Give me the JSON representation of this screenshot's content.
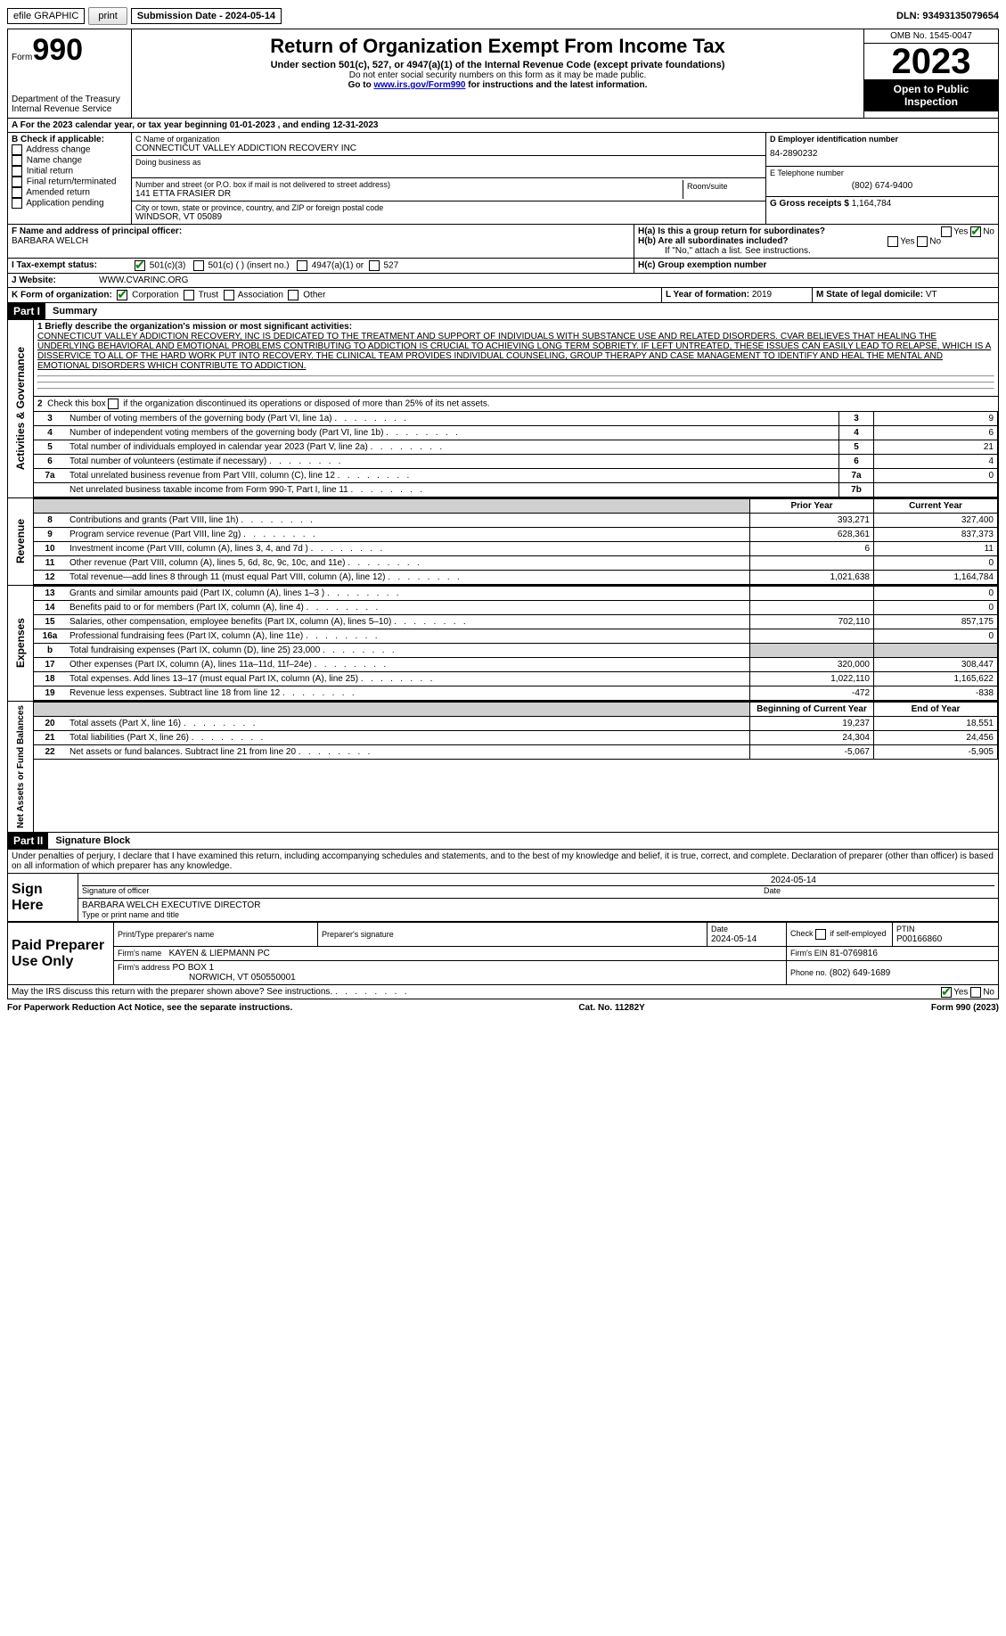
{
  "topbar": {
    "efile": "efile GRAPHIC",
    "print": "print",
    "submission": "Submission Date - 2024-05-14",
    "dln": "DLN: 93493135079654"
  },
  "header": {
    "form_label": "Form",
    "form_no": "990",
    "dept": "Department of the Treasury\nInternal Revenue Service",
    "title": "Return of Organization Exempt From Income Tax",
    "sub": "Under section 501(c), 527, or 4947(a)(1) of the Internal Revenue Code (except private foundations)",
    "warn": "Do not enter social security numbers on this form as it may be made public.",
    "goto_pre": "Go to ",
    "goto_link": "www.irs.gov/Form990",
    "goto_post": " for instructions and the latest information.",
    "omb": "OMB No. 1545-0047",
    "year": "2023",
    "inspection": "Open to Public Inspection"
  },
  "line_a": "A For the 2023 calendar year, or tax year beginning 01-01-2023   , and ending 12-31-2023",
  "block_b": {
    "label": "B Check if applicable:",
    "opts": [
      "Address change",
      "Name change",
      "Initial return",
      "Final return/terminated",
      "Amended return",
      "Application pending"
    ]
  },
  "block_c": {
    "name_label": "C Name of organization",
    "name": "CONNECTICUT VALLEY ADDICTION RECOVERY INC",
    "dba_label": "Doing business as",
    "street_label": "Number and street (or P.O. box if mail is not delivered to street address)",
    "room_label": "Room/suite",
    "street": "141 ETTA FRASIER DR",
    "city_label": "City or town, state or province, country, and ZIP or foreign postal code",
    "city": "WINDSOR, VT  05089"
  },
  "block_d": {
    "label": "D Employer identification number",
    "value": "84-2890232"
  },
  "block_e": {
    "label": "E Telephone number",
    "value": "(802) 674-9400"
  },
  "block_g": {
    "label": "G Gross receipts $",
    "value": "1,164,784"
  },
  "block_f": {
    "label": "F Name and address of principal officer:",
    "name": "BARBARA WELCH"
  },
  "block_h": {
    "ha": "H(a)  Is this a group return for subordinates?",
    "hb": "H(b)  Are all subordinates included?",
    "hb_note": "If \"No,\" attach a list. See instructions.",
    "hc": "H(c)  Group exemption number",
    "yes": "Yes",
    "no": "No"
  },
  "block_i": {
    "label": "I   Tax-exempt status:",
    "o1": "501(c)(3)",
    "o2": "501(c) (  ) (insert no.)",
    "o3": "4947(a)(1) or",
    "o4": "527"
  },
  "block_j": {
    "label": "J   Website:",
    "value": "WWW.CVARINC.ORG"
  },
  "block_k": {
    "label": "K Form of organization:",
    "o1": "Corporation",
    "o2": "Trust",
    "o3": "Association",
    "o4": "Other"
  },
  "block_l": {
    "label": "L Year of formation:",
    "value": "2019"
  },
  "block_m": {
    "label": "M State of legal domicile:",
    "value": "VT"
  },
  "part1": {
    "label": "Part I",
    "title": "Summary"
  },
  "mission_label": "1  Briefly describe the organization's mission or most significant activities:",
  "mission": "CONNECTICUT VALLEY ADDICTION RECOVERY, INC IS DEDICATED TO THE TREATMENT AND SUPPORT OF INDIVIDUALS WITH SUBSTANCE USE AND RELATED DISORDERS. CVAR BELIEVES THAT HEALING THE UNDERLYING BEHAVIORAL AND EMOTIONAL PROBLEMS CONTRIBUTING TO ADDICTION IS CRUCIAL TO ACHIEVING LONG TERM SOBRIETY. IF LEFT UNTREATED, THESE ISSUES CAN EASILY LEAD TO RELAPSE, WHICH IS A DISSERVICE TO ALL OF THE HARD WORK PUT INTO RECOVERY. THE CLINICAL TEAM PROVIDES INDIVIDUAL COUNSELING, GROUP THERAPY AND CASE MANAGEMENT TO IDENTIFY AND HEAL THE MENTAL AND EMOTIONAL DISORDERS WHICH CONTRIBUTE TO ADDICTION.",
  "line2": "2   Check this box       if the organization discontinued its operations or disposed of more than 25% of its net assets.",
  "gov_rows": [
    {
      "n": "3",
      "t": "Number of voting members of the governing body (Part VI, line 1a)",
      "b": "3",
      "v": "9"
    },
    {
      "n": "4",
      "t": "Number of independent voting members of the governing body (Part VI, line 1b)",
      "b": "4",
      "v": "6"
    },
    {
      "n": "5",
      "t": "Total number of individuals employed in calendar year 2023 (Part V, line 2a)",
      "b": "5",
      "v": "21"
    },
    {
      "n": "6",
      "t": "Total number of volunteers (estimate if necessary)",
      "b": "6",
      "v": "4"
    },
    {
      "n": "7a",
      "t": "Total unrelated business revenue from Part VIII, column (C), line 12",
      "b": "7a",
      "v": "0"
    },
    {
      "n": "",
      "t": "Net unrelated business taxable income from Form 990-T, Part I, line 11",
      "b": "7b",
      "v": ""
    }
  ],
  "py": "Prior Year",
  "cy": "Current Year",
  "rev_rows": [
    {
      "n": "8",
      "t": "Contributions and grants (Part VIII, line 1h)",
      "p": "393,271",
      "c": "327,400"
    },
    {
      "n": "9",
      "t": "Program service revenue (Part VIII, line 2g)",
      "p": "628,361",
      "c": "837,373"
    },
    {
      "n": "10",
      "t": "Investment income (Part VIII, column (A), lines 3, 4, and 7d )",
      "p": "6",
      "c": "11"
    },
    {
      "n": "11",
      "t": "Other revenue (Part VIII, column (A), lines 5, 6d, 8c, 9c, 10c, and 11e)",
      "p": "",
      "c": "0"
    },
    {
      "n": "12",
      "t": "Total revenue—add lines 8 through 11 (must equal Part VIII, column (A), line 12)",
      "p": "1,021,638",
      "c": "1,164,784"
    }
  ],
  "exp_rows": [
    {
      "n": "13",
      "t": "Grants and similar amounts paid (Part IX, column (A), lines 1–3 )",
      "p": "",
      "c": "0"
    },
    {
      "n": "14",
      "t": "Benefits paid to or for members (Part IX, column (A), line 4)",
      "p": "",
      "c": "0"
    },
    {
      "n": "15",
      "t": "Salaries, other compensation, employee benefits (Part IX, column (A), lines 5–10)",
      "p": "702,110",
      "c": "857,175"
    },
    {
      "n": "16a",
      "t": "Professional fundraising fees (Part IX, column (A), line 11e)",
      "p": "",
      "c": "0"
    },
    {
      "n": "b",
      "t": "Total fundraising expenses (Part IX, column (D), line 25) 23,000",
      "p": "grey",
      "c": "grey"
    },
    {
      "n": "17",
      "t": "Other expenses (Part IX, column (A), lines 11a–11d, 11f–24e)",
      "p": "320,000",
      "c": "308,447"
    },
    {
      "n": "18",
      "t": "Total expenses. Add lines 13–17 (must equal Part IX, column (A), line 25)",
      "p": "1,022,110",
      "c": "1,165,622"
    },
    {
      "n": "19",
      "t": "Revenue less expenses. Subtract line 18 from line 12",
      "p": "-472",
      "c": "-838"
    }
  ],
  "bcy": "Beginning of Current Year",
  "ecy": "End of Year",
  "na_rows": [
    {
      "n": "20",
      "t": "Total assets (Part X, line 16)",
      "p": "19,237",
      "c": "18,551"
    },
    {
      "n": "21",
      "t": "Total liabilities (Part X, line 26)",
      "p": "24,304",
      "c": "24,456"
    },
    {
      "n": "22",
      "t": "Net assets or fund balances. Subtract line 21 from line 20",
      "p": "-5,067",
      "c": "-5,905"
    }
  ],
  "sections": {
    "gov": "Activities & Governance",
    "rev": "Revenue",
    "exp": "Expenses",
    "na": "Net Assets or Fund Balances"
  },
  "part2": {
    "label": "Part II",
    "title": "Signature Block"
  },
  "perjury": "Under penalties of perjury, I declare that I have examined this return, including accompanying schedules and statements, and to the best of my knowledge and belief, it is true, correct, and complete. Declaration of preparer (other than officer) is based on all information of which preparer has any knowledge.",
  "sign": {
    "here": "Sign Here",
    "sig_officer": "Signature of officer",
    "name": "BARBARA WELCH  EXECUTIVE DIRECTOR",
    "type_label": "Type or print name and title",
    "date_label": "Date",
    "date": "2024-05-14"
  },
  "paid": {
    "label": "Paid Preparer Use Only",
    "prep_name_label": "Print/Type preparer's name",
    "prep_sig_label": "Preparer's signature",
    "date_label": "Date",
    "date": "2024-05-14",
    "check_label": "Check        if self-employed",
    "ptin_label": "PTIN",
    "ptin": "P00166860",
    "firm_name_label": "Firm's name",
    "firm_name": "KAYEN & LIEPMANN PC",
    "firm_ein_label": "Firm's EIN",
    "firm_ein": "81-0769816",
    "firm_addr_label": "Firm's address",
    "firm_addr1": "PO BOX 1",
    "firm_addr2": "NORWICH, VT  050550001",
    "phone_label": "Phone no.",
    "phone": "(802) 649-1689"
  },
  "discuss": "May the IRS discuss this return with the preparer shown above? See instructions.",
  "footer": {
    "left": "For Paperwork Reduction Act Notice, see the separate instructions.",
    "mid": "Cat. No. 11282Y",
    "right": "Form 990 (2023)"
  }
}
